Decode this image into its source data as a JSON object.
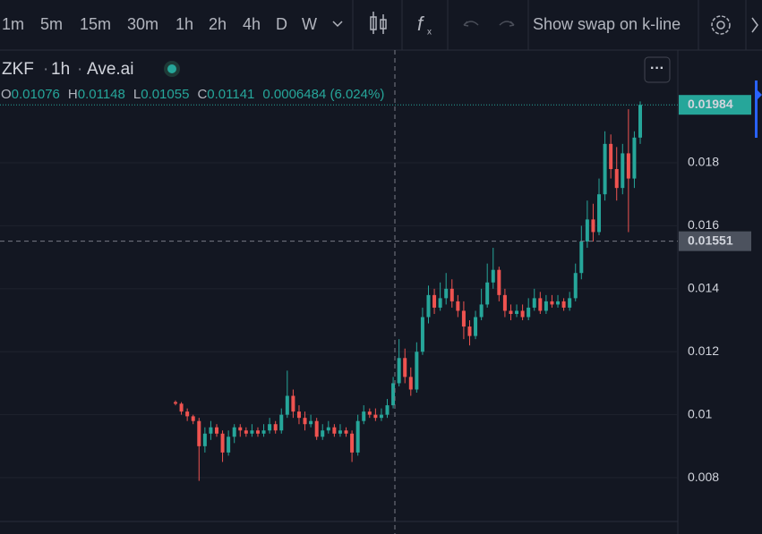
{
  "toolbar": {
    "intervals": [
      "1m",
      "5m",
      "15m",
      "30m",
      "1h",
      "2h",
      "4h",
      "D",
      "W"
    ],
    "active_interval": "1h",
    "swap_button": "Show swap on k-line"
  },
  "header": {
    "symbol": "ZKF",
    "interval": "1h",
    "source": "Ave.ai",
    "legend": [
      {
        "label": "O",
        "value": "0.01076"
      },
      {
        "label": "H",
        "value": "0.01148"
      },
      {
        "label": "L",
        "value": "0.01055"
      },
      {
        "label": "C",
        "value": "0.01141"
      }
    ],
    "change": "0.0006484 (6.024%)"
  },
  "chart_data": {
    "type": "candlestick",
    "up_color": "#26a69a",
    "down_color": "#ef5350",
    "grid": true,
    "ylim": [
      0.00661,
      0.02155
    ],
    "yticks": [
      0.008,
      0.01,
      0.012,
      0.014,
      0.016,
      0.018
    ],
    "last_price": 0.01984,
    "crosshair_price": 0.01551,
    "series": {
      "open": [
        0.0104,
        0.01035,
        0.0101,
        0.00995,
        0.0098,
        0.009,
        0.0094,
        0.0096,
        0.0094,
        0.0088,
        0.0093,
        0.0096,
        0.0095,
        0.0094,
        0.0095,
        0.0094,
        0.0095,
        0.0097,
        0.0095,
        0.01,
        0.0106,
        0.0101,
        0.0099,
        0.0097,
        0.0098,
        0.0093,
        0.0095,
        0.0096,
        0.0094,
        0.0095,
        0.0094,
        0.0088,
        0.0098,
        0.0101,
        0.01,
        0.0099,
        0.01,
        0.0103,
        0.011,
        0.0118,
        0.0112,
        0.0108,
        0.012,
        0.0131,
        0.0138,
        0.0134,
        0.0137,
        0.014,
        0.0136,
        0.0133,
        0.0128,
        0.0125,
        0.0131,
        0.0135,
        0.0142,
        0.0146,
        0.0138,
        0.0133,
        0.0132,
        0.0133,
        0.0131,
        0.0134,
        0.0137,
        0.0133,
        0.0136,
        0.0135,
        0.0136,
        0.0134,
        0.0137,
        0.0145,
        0.0155,
        0.0162,
        0.0158,
        0.017,
        0.0186,
        0.0178,
        0.0172,
        0.0183,
        0.0175,
        0.0188
      ],
      "high": [
        0.01045,
        0.0104,
        0.0102,
        0.01,
        0.0099,
        0.0096,
        0.0098,
        0.0097,
        0.0095,
        0.0095,
        0.0097,
        0.0097,
        0.0096,
        0.0097,
        0.0096,
        0.0097,
        0.0099,
        0.0098,
        0.0102,
        0.0114,
        0.0108,
        0.0103,
        0.0101,
        0.01,
        0.0099,
        0.0097,
        0.0098,
        0.0097,
        0.0097,
        0.0096,
        0.0095,
        0.01,
        0.0103,
        0.0102,
        0.0102,
        0.0102,
        0.0105,
        0.0112,
        0.0124,
        0.0121,
        0.0115,
        0.0123,
        0.0134,
        0.0141,
        0.014,
        0.0142,
        0.0145,
        0.0143,
        0.0138,
        0.0136,
        0.013,
        0.0133,
        0.014,
        0.0148,
        0.0153,
        0.0147,
        0.014,
        0.0135,
        0.0135,
        0.0135,
        0.0137,
        0.014,
        0.0139,
        0.0138,
        0.0138,
        0.0138,
        0.0137,
        0.0139,
        0.0148,
        0.016,
        0.0168,
        0.0167,
        0.0175,
        0.019,
        0.0189,
        0.0185,
        0.0186,
        0.0197,
        0.019,
        0.01995
      ],
      "low": [
        0.0103,
        0.01,
        0.0098,
        0.0097,
        0.0079,
        0.0088,
        0.0092,
        0.0093,
        0.0085,
        0.0087,
        0.0091,
        0.0093,
        0.0093,
        0.0093,
        0.0093,
        0.0093,
        0.0094,
        0.0094,
        0.0094,
        0.0099,
        0.0099,
        0.0097,
        0.0095,
        0.0096,
        0.0092,
        0.0092,
        0.0094,
        0.0093,
        0.0093,
        0.0093,
        0.0085,
        0.0087,
        0.0097,
        0.0099,
        0.0098,
        0.0098,
        0.0099,
        0.0102,
        0.0109,
        0.011,
        0.0106,
        0.0107,
        0.0119,
        0.0129,
        0.0132,
        0.0133,
        0.0135,
        0.0134,
        0.0131,
        0.0124,
        0.0122,
        0.0124,
        0.013,
        0.0134,
        0.014,
        0.0136,
        0.0131,
        0.013,
        0.0131,
        0.013,
        0.013,
        0.0133,
        0.0132,
        0.0132,
        0.0134,
        0.0134,
        0.0133,
        0.0133,
        0.0136,
        0.0143,
        0.0153,
        0.0155,
        0.0157,
        0.0168,
        0.0175,
        0.0168,
        0.017,
        0.0158,
        0.0172,
        0.0186
      ],
      "close": [
        0.01035,
        0.0101,
        0.00995,
        0.0098,
        0.009,
        0.0094,
        0.0096,
        0.0094,
        0.0088,
        0.0093,
        0.0096,
        0.0095,
        0.0094,
        0.0095,
        0.0094,
        0.0095,
        0.0097,
        0.0095,
        0.01,
        0.0106,
        0.0101,
        0.0099,
        0.0097,
        0.0098,
        0.0093,
        0.0095,
        0.0096,
        0.0094,
        0.0095,
        0.0094,
        0.0088,
        0.0098,
        0.0101,
        0.01,
        0.0099,
        0.01,
        0.0103,
        0.011,
        0.0118,
        0.0112,
        0.0108,
        0.012,
        0.0131,
        0.0138,
        0.0134,
        0.0137,
        0.014,
        0.0136,
        0.0133,
        0.0128,
        0.0125,
        0.0131,
        0.0135,
        0.0142,
        0.0146,
        0.0138,
        0.0133,
        0.0132,
        0.0133,
        0.0131,
        0.0134,
        0.0137,
        0.0133,
        0.0136,
        0.0135,
        0.0136,
        0.0134,
        0.0137,
        0.0145,
        0.0155,
        0.0162,
        0.0158,
        0.017,
        0.0186,
        0.0178,
        0.0172,
        0.0183,
        0.0175,
        0.0188,
        0.01984
      ]
    }
  }
}
